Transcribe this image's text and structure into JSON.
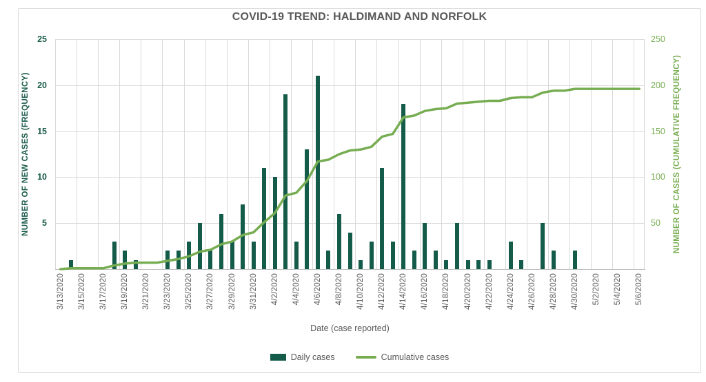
{
  "chart_data": {
    "type": "combo-bar-line",
    "title": "COVID-19 TREND: HALDIMAND AND NORFOLK",
    "xlabel": "Date (case reported)",
    "ylabel_left": "NUMBER OF NEW CASES (FREQUENCY)",
    "ylabel_right": "NUMBER OF CASES (CUMULATIVE FREQUENCY)",
    "ylim_left": [
      0,
      25
    ],
    "yticks_left": [
      5,
      10,
      15,
      20,
      25
    ],
    "ylim_right": [
      0,
      250
    ],
    "yticks_right": [
      50,
      100,
      150,
      200,
      250
    ],
    "xtick_interval": 2,
    "grid": true,
    "legend_position": "bottom",
    "x": [
      "3/13/2020",
      "3/14/2020",
      "3/15/2020",
      "3/16/2020",
      "3/17/2020",
      "3/18/2020",
      "3/19/2020",
      "3/20/2020",
      "3/21/2020",
      "3/22/2020",
      "3/23/2020",
      "3/24/2020",
      "3/25/2020",
      "3/26/2020",
      "3/27/2020",
      "3/28/2020",
      "3/29/2020",
      "3/30/2020",
      "3/31/2020",
      "4/1/2020",
      "4/2/2020",
      "4/3/2020",
      "4/4/2020",
      "4/5/2020",
      "4/6/2020",
      "4/7/2020",
      "4/8/2020",
      "4/9/2020",
      "4/10/2020",
      "4/11/2020",
      "4/12/2020",
      "4/13/2020",
      "4/14/2020",
      "4/15/2020",
      "4/16/2020",
      "4/17/2020",
      "4/18/2020",
      "4/19/2020",
      "4/20/2020",
      "4/21/2020",
      "4/22/2020",
      "4/23/2020",
      "4/24/2020",
      "4/25/2020",
      "4/26/2020",
      "4/27/2020",
      "4/28/2020",
      "4/29/2020",
      "4/30/2020",
      "5/1/2020",
      "5/2/2020",
      "5/3/2020",
      "5/4/2020",
      "5/5/2020",
      "5/6/2020"
    ],
    "series": [
      {
        "name": "Daily cases",
        "type": "bar",
        "axis": "left",
        "values": [
          0,
          1,
          0,
          0,
          0,
          3,
          2,
          1,
          0,
          0,
          2,
          2,
          3,
          5,
          2,
          6,
          3,
          7,
          3,
          11,
          10,
          19,
          3,
          13,
          21,
          2,
          6,
          4,
          1,
          3,
          11,
          3,
          18,
          2,
          5,
          2,
          1,
          5,
          1,
          1,
          1,
          0,
          3,
          1,
          0,
          5,
          2,
          0,
          2,
          0,
          0,
          0,
          0,
          0,
          0
        ]
      },
      {
        "name": "Cumulative cases",
        "type": "line",
        "axis": "right",
        "values": [
          0,
          1,
          1,
          1,
          1,
          4,
          6,
          7,
          7,
          7,
          9,
          11,
          14,
          19,
          21,
          27,
          30,
          37,
          40,
          51,
          61,
          80,
          83,
          96,
          117,
          119,
          125,
          129,
          130,
          133,
          144,
          147,
          165,
          167,
          172,
          174,
          175,
          180,
          181,
          182,
          183,
          183,
          186,
          187,
          187,
          192,
          194,
          194,
          196,
          196,
          196,
          196,
          196,
          196,
          196
        ]
      }
    ],
    "colors": {
      "bar": "#155B4A",
      "line": "#77AD52",
      "left_axis_text": "#1A5B4A",
      "right_axis_text": "#77AD52",
      "muted_text": "#595959",
      "grid": "#D9D9D9"
    }
  }
}
